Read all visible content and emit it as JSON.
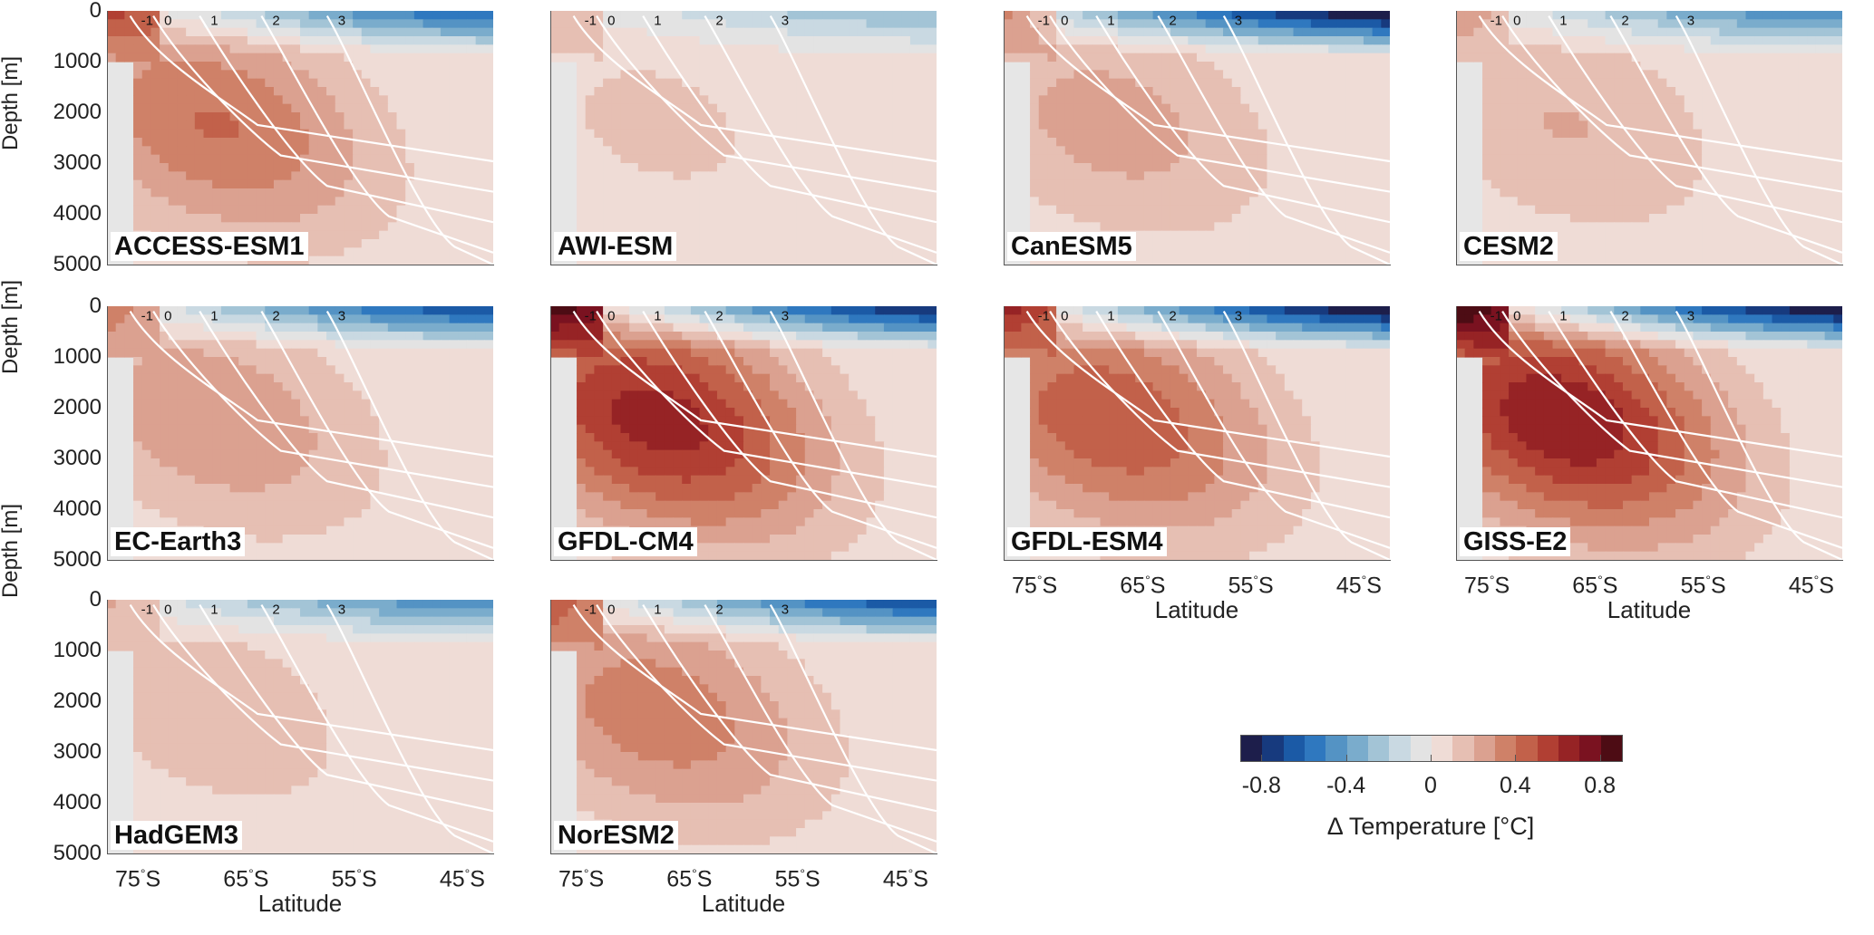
{
  "chart_data": {
    "type": "heatmap",
    "description_title": "",
    "colorbar": {
      "label": "Δ Temperature [°C]",
      "ticks": [
        "-0.8",
        "-0.4",
        "0",
        "0.4",
        "0.8"
      ],
      "range": [
        -0.9,
        0.9
      ],
      "levels": 18,
      "colors": [
        "#1d1e4b",
        "#173a7e",
        "#1b5aa6",
        "#2f78bf",
        "#5493c4",
        "#7aaccc",
        "#a3c4d6",
        "#c9d9e2",
        "#e3e3e3",
        "#efdcd6",
        "#e6bfb3",
        "#dba190",
        "#cf8168",
        "#c2614a",
        "#b13f33",
        "#962325",
        "#7a1220",
        "#4d0c14"
      ]
    },
    "axes": {
      "x_label": "Latitude",
      "y_label": "Depth [m]",
      "x_ticks": [
        "75°S",
        "65°S",
        "55°S",
        "45°S"
      ],
      "y_ticks": [
        "0",
        "1000",
        "2000",
        "3000",
        "4000",
        "5000"
      ],
      "x_range": [
        -80,
        -45
      ],
      "y_range": [
        0,
        5000
      ]
    },
    "panels": [
      {
        "model": "ACCESS-ESM1",
        "deep_warming": 0.5,
        "surface_cooling": -0.6,
        "contours": [
          "-1",
          "0",
          "1",
          "2",
          "3"
        ]
      },
      {
        "model": "AWI-ESM",
        "deep_warming": 0.15,
        "surface_cooling": -0.3,
        "contours": [
          "-1",
          "0",
          "1",
          "2",
          "3"
        ]
      },
      {
        "model": "CanESM5",
        "deep_warming": 0.3,
        "surface_cooling": -0.9,
        "contours": [
          "-1",
          "0",
          "1",
          "2",
          "3"
        ]
      },
      {
        "model": "CESM2",
        "deep_warming": 0.25,
        "surface_cooling": -0.5,
        "contours": [
          "-1",
          "0",
          "1",
          "2",
          "3"
        ]
      },
      {
        "model": "EC-Earth3",
        "deep_warming": 0.35,
        "surface_cooling": -0.7,
        "contours": [
          "-1",
          "0",
          "1",
          "2",
          "3"
        ]
      },
      {
        "model": "GFDL-CM4",
        "deep_warming": 0.8,
        "surface_cooling": -0.8,
        "contours": [
          "-1",
          "0",
          "1",
          "2",
          "3"
        ]
      },
      {
        "model": "GFDL-ESM4",
        "deep_warming": 0.6,
        "surface_cooling": -0.9,
        "contours": [
          "-1",
          "0",
          "1",
          "2",
          "3"
        ]
      },
      {
        "model": "GISS-E2",
        "deep_warming": 0.85,
        "surface_cooling": -0.9,
        "contours": [
          "-1",
          "0",
          "1",
          "2",
          "3"
        ]
      },
      {
        "model": "HadGEM3",
        "deep_warming": 0.2,
        "surface_cooling": -0.5,
        "contours": [
          "-1",
          "0",
          "1",
          "2",
          "3"
        ]
      },
      {
        "model": "NorESM2",
        "deep_warming": 0.45,
        "surface_cooling": -0.7,
        "contours": [
          "-1",
          "0",
          "1",
          "2",
          "3"
        ]
      }
    ]
  }
}
